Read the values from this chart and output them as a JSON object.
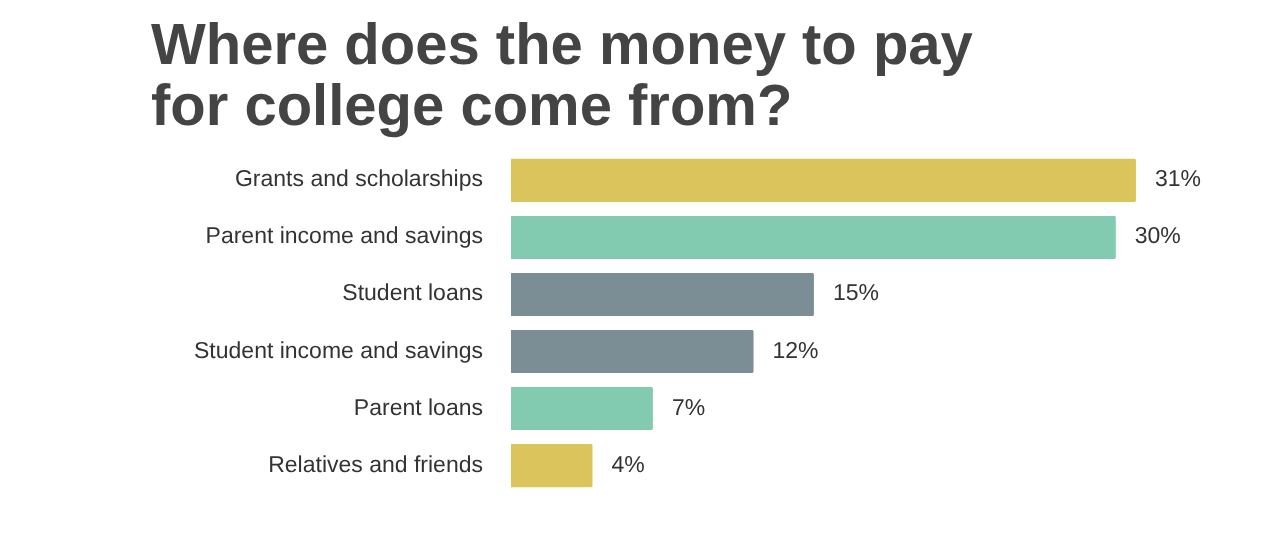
{
  "chart_data": {
    "type": "bar",
    "orientation": "horizontal",
    "title": "Where does the money to pay for college come from?",
    "categories": [
      "Grants and scholarships",
      "Parent income and savings",
      "Student loans",
      "Student income and savings",
      "Parent loans",
      "Relatives and friends"
    ],
    "values": [
      31,
      30,
      15,
      12,
      7,
      4
    ],
    "colors": [
      "#dcc45c",
      "#82cbb0",
      "#7b8d95",
      "#7b8d95",
      "#82cbb0",
      "#dcc45c"
    ],
    "value_labels": [
      "31%",
      "30%",
      "15%",
      "12%",
      "7%",
      "4%"
    ],
    "grid": false
  }
}
